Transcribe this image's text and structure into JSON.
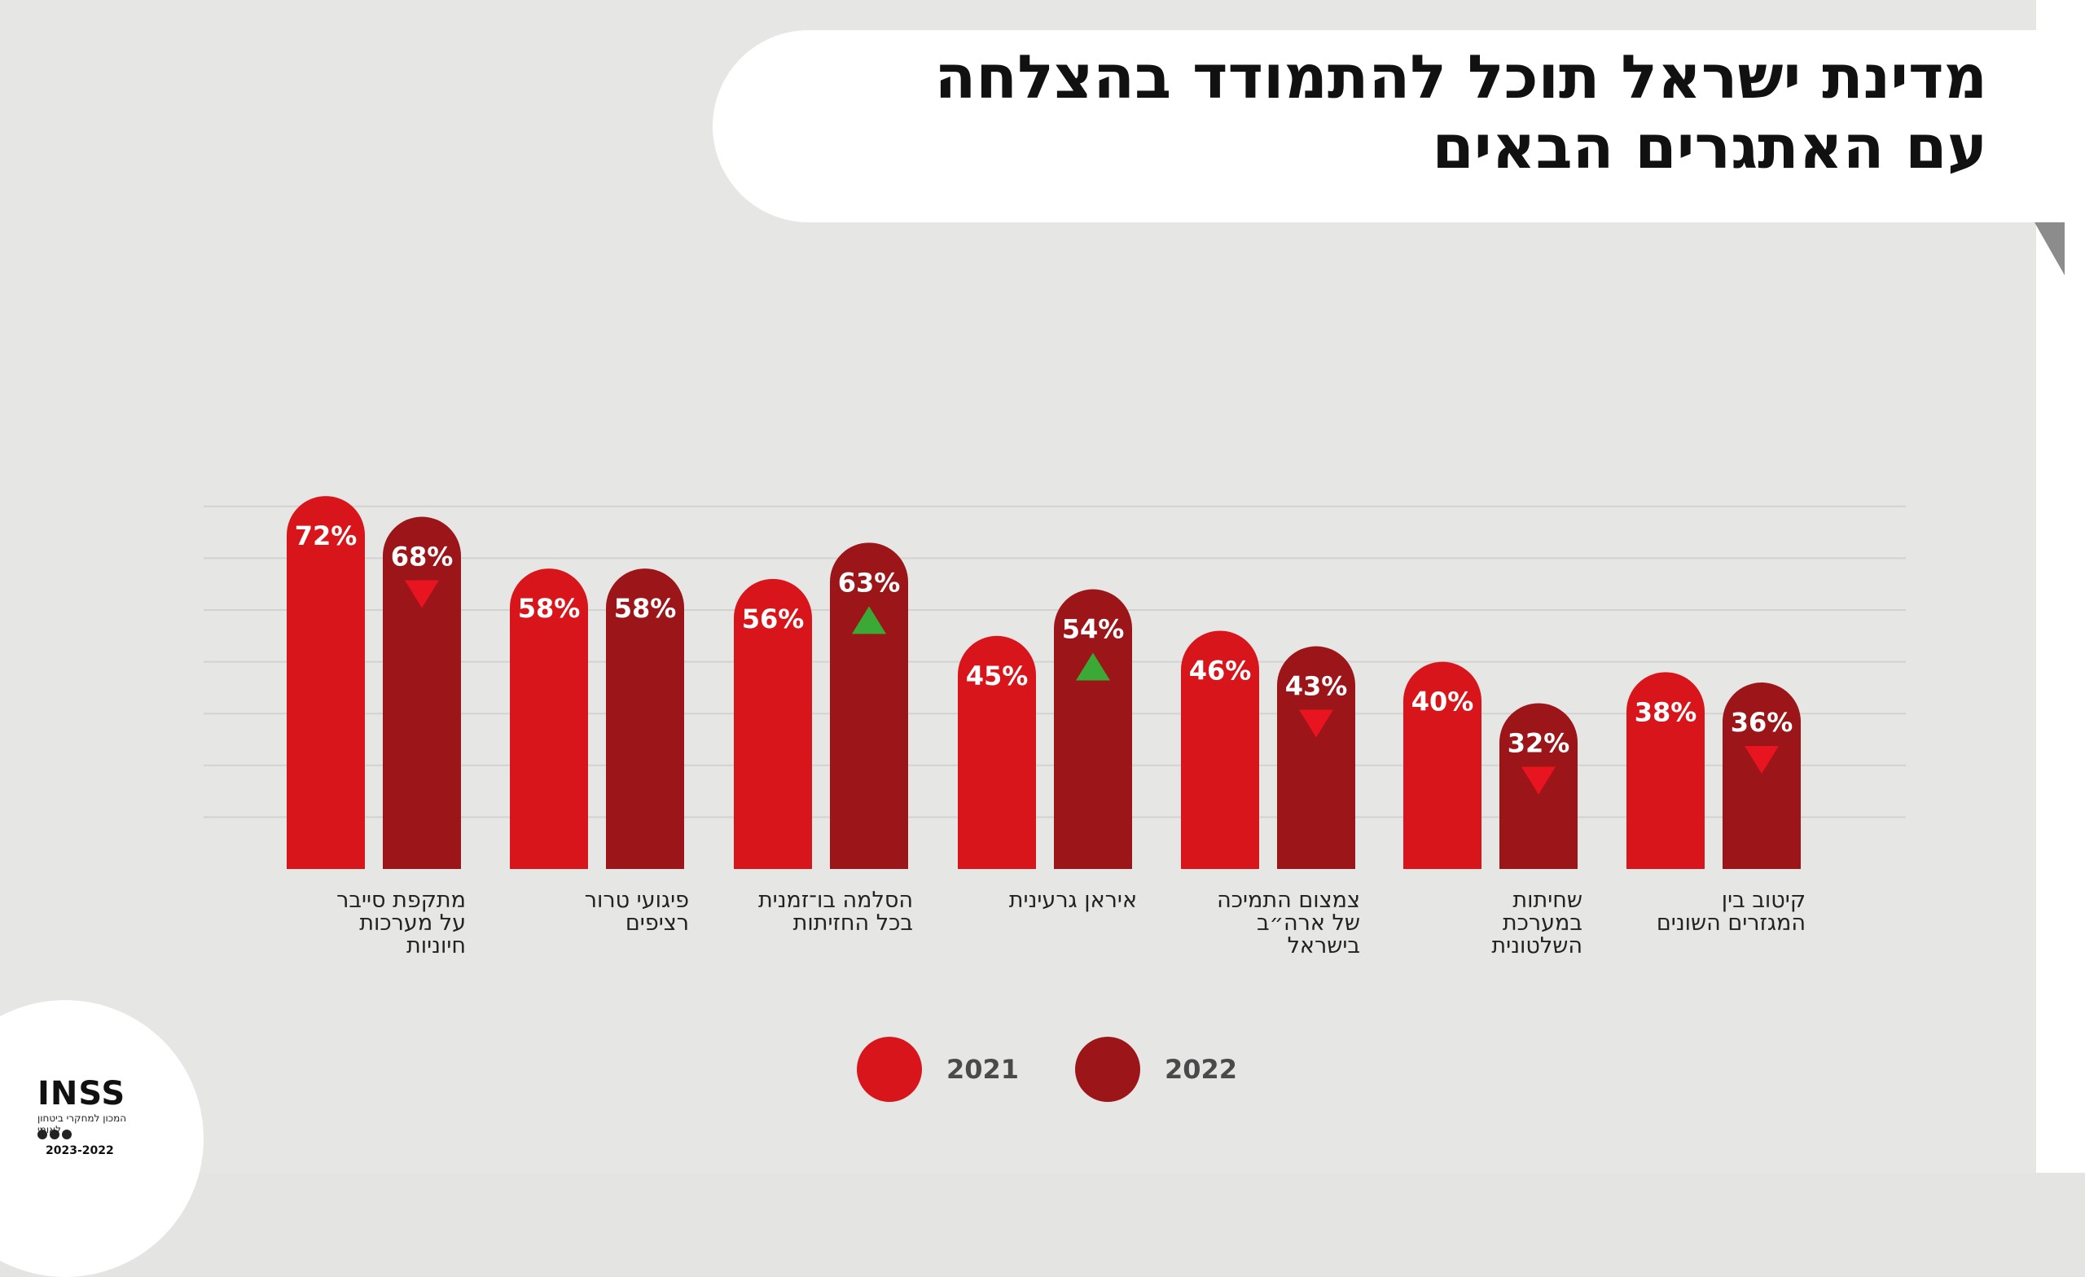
{
  "title_line1": "מדינת ישראל תוכל להתמודד בהצלחה",
  "title_line2": "עם האתגרים הבאים",
  "logo": {
    "name": "INSS",
    "subtitle": "המכון למחקרי ביטחון לאומי",
    "years": "2023-2022"
  },
  "chart_data": {
    "type": "bar",
    "title": "מדינת ישראל תוכל להתמודד בהצלחה עם האתגרים הבאים",
    "categories": [
      "מתקפת סייבר\nעל מערכות\nחיוניות",
      "פיגועי טרור\nרציפים",
      "הסלמה בו־זמנית\nבכל החזיתות",
      "איראן גרעינית",
      "צמצום התמיכה\nשל ארה״ב\nבישראל",
      "שחיתות\nבמערכת\nהשלטונית",
      "קיטוב בין\nהמגזרים השונים"
    ],
    "series": [
      {
        "name": "2021",
        "values": [
          72,
          58,
          56,
          45,
          46,
          40,
          38
        ],
        "labels": [
          "72%",
          "58%",
          "56%",
          "45%",
          "46%",
          "40%",
          "38%"
        ],
        "color": "#d9151c"
      },
      {
        "name": "2022",
        "values": [
          68,
          58,
          63,
          54,
          43,
          32,
          36
        ],
        "labels": [
          "68%",
          "58%",
          "63%",
          "54%",
          "43%",
          "32%",
          "36%"
        ],
        "color": "#9b1519"
      }
    ],
    "change_markers": [
      "down",
      "none",
      "up",
      "up",
      "down",
      "down",
      "down"
    ],
    "marker_colors": {
      "up": "#3aa935",
      "down": "#e8141f"
    },
    "ylim": [
      0,
      80
    ],
    "grid": true,
    "legend_position": "bottom"
  }
}
